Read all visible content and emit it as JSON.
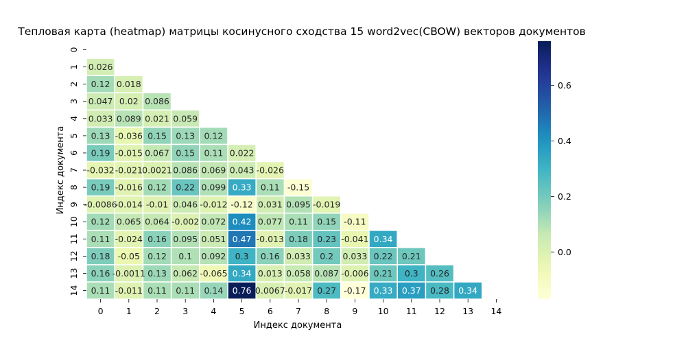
{
  "chart_data": {
    "type": "heatmap",
    "title": "Тепловая карта (heatmap) матрицы косинусного сходства 15 word2vec(CBOW) векторов документов",
    "xlabel": "Индекс документа",
    "ylabel": "Индекс документа",
    "x_tick_labels": [
      "0",
      "1",
      "2",
      "3",
      "4",
      "5",
      "6",
      "7",
      "8",
      "9",
      "10",
      "11",
      "12",
      "13",
      "14"
    ],
    "y_tick_labels": [
      "0",
      "1",
      "2",
      "3",
      "4",
      "5",
      "6",
      "7",
      "8",
      "9",
      "10",
      "11",
      "12",
      "13",
      "14"
    ],
    "mask": "upper triangle including diagonal",
    "colormap": "YlGnBu",
    "vmin": -0.17,
    "vmax": 0.76,
    "colorbar_ticks": [
      0.0,
      0.2,
      0.4,
      0.6
    ],
    "colorbar_tick_labels": [
      "0.0",
      "0.2",
      "0.4",
      "0.6"
    ],
    "matrix": [
      [],
      [
        0.026
      ],
      [
        0.12,
        0.018
      ],
      [
        0.047,
        0.02,
        0.086
      ],
      [
        0.033,
        0.089,
        0.021,
        0.059
      ],
      [
        0.13,
        -0.036,
        0.15,
        0.13,
        0.12
      ],
      [
        0.19,
        -0.015,
        0.067,
        0.15,
        0.11,
        0.022
      ],
      [
        -0.032,
        -0.021,
        0.0021,
        0.086,
        0.069,
        0.043,
        -0.026
      ],
      [
        0.19,
        -0.016,
        0.12,
        0.22,
        0.099,
        0.33,
        0.11,
        -0.15
      ],
      [
        -0.0086,
        -0.014,
        -0.01,
        0.046,
        -0.012,
        -0.12,
        0.031,
        0.095,
        -0.019
      ],
      [
        0.12,
        0.065,
        0.064,
        -0.002,
        0.072,
        0.42,
        0.077,
        0.11,
        0.15,
        -0.11
      ],
      [
        0.11,
        -0.024,
        0.16,
        0.095,
        0.051,
        0.47,
        -0.013,
        0.18,
        0.23,
        -0.041,
        0.34
      ],
      [
        0.18,
        -0.05,
        0.12,
        0.1,
        0.092,
        0.3,
        0.16,
        0.033,
        0.2,
        0.033,
        0.22,
        0.21
      ],
      [
        0.16,
        -0.0011,
        0.13,
        0.062,
        -0.065,
        0.34,
        0.013,
        0.058,
        0.087,
        -0.006,
        0.21,
        0.3,
        0.26
      ],
      [
        0.11,
        -0.011,
        0.11,
        0.11,
        0.14,
        0.76,
        0.0067,
        -0.017,
        0.27,
        -0.17,
        0.33,
        0.37,
        0.28,
        0.34
      ]
    ],
    "cell_labels": [
      [],
      [
        "0.026"
      ],
      [
        "0.12",
        "0.018"
      ],
      [
        "0.047",
        "0.02",
        "0.086"
      ],
      [
        "0.033",
        "0.089",
        "0.021",
        "0.059"
      ],
      [
        "0.13",
        "-0.036",
        "0.15",
        "0.13",
        "0.12"
      ],
      [
        "0.19",
        "-0.015",
        "0.067",
        "0.15",
        "0.11",
        "0.022"
      ],
      [
        "-0.032",
        "-0.021",
        "0.0021",
        "0.086",
        "0.069",
        "0.043",
        "-0.026"
      ],
      [
        "0.19",
        "-0.016",
        "0.12",
        "0.22",
        "0.099",
        "0.33",
        "0.11",
        "-0.15"
      ],
      [
        "-0.0086",
        "-0.014",
        "-0.01",
        "0.046",
        "-0.012",
        "-0.12",
        "0.031",
        "0.095",
        "-0.019"
      ],
      [
        "0.12",
        "0.065",
        "0.064",
        "-0.002",
        "0.072",
        "0.42",
        "0.077",
        "0.11",
        "0.15",
        "-0.11"
      ],
      [
        "0.11",
        "-0.024",
        "0.16",
        "0.095",
        "0.051",
        "0.47",
        "-0.013",
        "0.18",
        "0.23",
        "-0.041",
        "0.34"
      ],
      [
        "0.18",
        "-0.05",
        "0.12",
        "0.1",
        "0.092",
        "0.3",
        "0.16",
        "0.033",
        "0.2",
        "0.033",
        "0.22",
        "0.21"
      ],
      [
        "0.16",
        "-0.0011",
        "0.13",
        "0.062",
        "-0.065",
        "0.34",
        "0.013",
        "0.058",
        "0.087",
        "-0.006",
        "0.21",
        "0.3",
        "0.26"
      ],
      [
        "0.11",
        "-0.011",
        "0.11",
        "0.11",
        "0.14",
        "0.76",
        "0.0067",
        "-0.017",
        "0.27",
        "-0.17",
        "0.33",
        "0.37",
        "0.28",
        "0.34"
      ]
    ]
  }
}
